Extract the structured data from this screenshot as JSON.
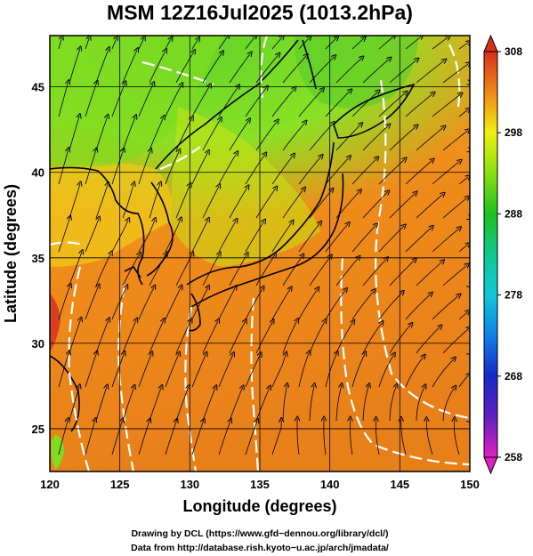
{
  "title": "MSM 12Z16Jul2025 (1013.2hPa)",
  "map": {
    "xlabel": "Longitude (degrees)",
    "ylabel": "Latitude  (degrees)",
    "lon_range": [
      120,
      150
    ],
    "lat_range": [
      22.5,
      48
    ],
    "lon_ticks": [
      "120",
      "125",
      "130",
      "135",
      "140",
      "145",
      "150"
    ],
    "lat_ticks": [
      "25",
      "30",
      "35",
      "40",
      "45"
    ],
    "grid": true,
    "layers": [
      "temperature-shading",
      "streamlines",
      "white-contours",
      "coastlines"
    ]
  },
  "colorbar": {
    "ticks": [
      "258",
      "268",
      "278",
      "288",
      "298",
      "308"
    ],
    "range": [
      258,
      308
    ],
    "colors": {
      "258": "#e020c0",
      "263": "#6020c0",
      "268": "#1828c8",
      "273": "#1080e8",
      "278": "#10c8d8",
      "283": "#10c890",
      "288": "#20c020",
      "293": "#88e010",
      "298": "#f0f010",
      "303": "#f08818",
      "308": "#d83018"
    }
  },
  "credits": {
    "line1": "Drawing by DCL (https://www.gfd−dennou.org/library/dcl/)",
    "line2": "Data from http://database.rish.kyoto−u.ac.jp/arch/jmadata/"
  }
}
